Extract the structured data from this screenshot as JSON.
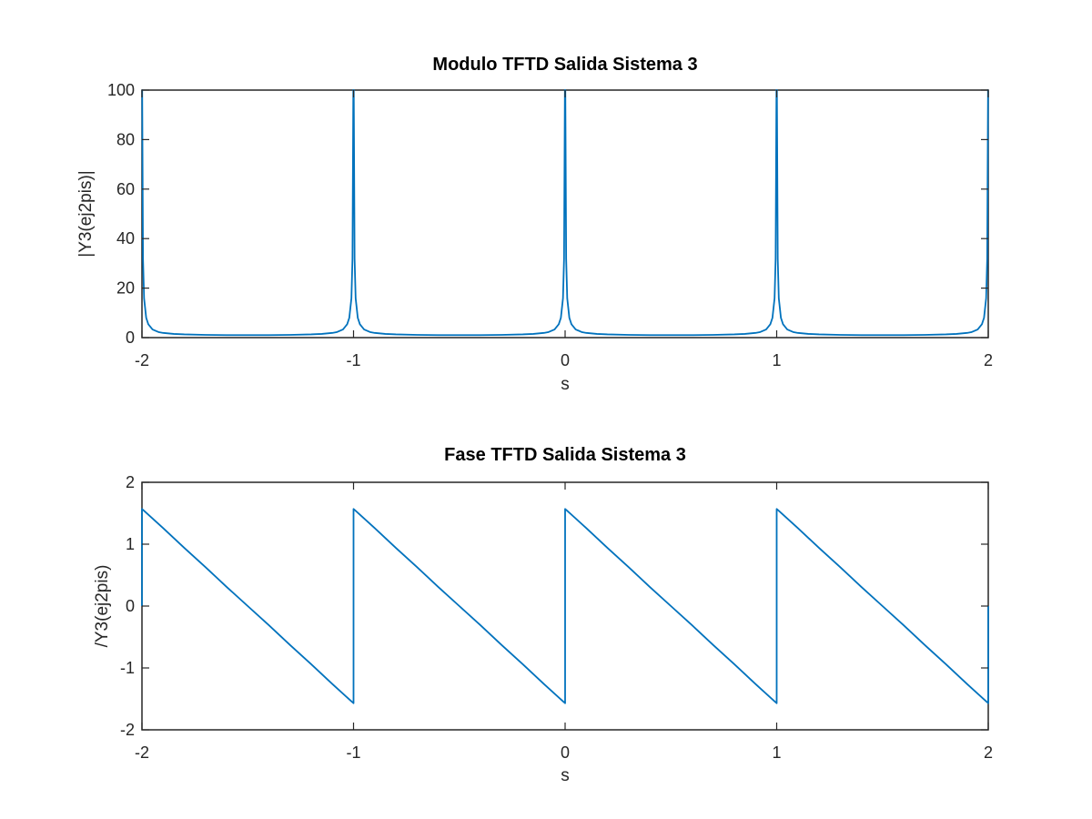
{
  "colors": {
    "series": "#0072bd",
    "axes": "#262626",
    "background": "#ffffff"
  },
  "chart_data": [
    {
      "type": "line",
      "title": "Modulo TFTD Salida Sistema 3",
      "xlabel": "s",
      "ylabel": "|Y3(ej2pis)|",
      "xlim": [
        -2,
        2
      ],
      "ylim": [
        0,
        100
      ],
      "xticks": [
        -2,
        -1,
        0,
        1,
        2
      ],
      "yticks": [
        0,
        20,
        40,
        60,
        80,
        100
      ],
      "xtick_labels": [
        "-2",
        "-1",
        "0",
        "1",
        "2"
      ],
      "ytick_labels": [
        "0",
        "20",
        "40",
        "60",
        "80",
        "100"
      ],
      "grid": false,
      "series": [
        {
          "x": [
            -2,
            -1.999,
            -1.995,
            -1.99,
            -1.98,
            -1.97,
            -1.95,
            -1.92,
            -1.9,
            -1.85,
            -1.8,
            -1.7,
            -1.6,
            -1.5,
            -1.4,
            -1.3,
            -1.2,
            -1.15,
            -1.1,
            -1.08,
            -1.05,
            -1.03,
            -1.02,
            -1.01,
            -1.005,
            -1.001,
            -1,
            -0.999,
            -0.995,
            -0.99,
            -0.98,
            -0.97,
            -0.95,
            -0.92,
            -0.9,
            -0.85,
            -0.8,
            -0.7,
            -0.6,
            -0.5,
            -0.4,
            -0.3,
            -0.2,
            -0.15,
            -0.1,
            -0.08,
            -0.05,
            -0.03,
            -0.02,
            -0.01,
            -0.005,
            -0.001,
            0,
            0.001,
            0.005,
            0.01,
            0.02,
            0.03,
            0.05,
            0.08,
            0.1,
            0.15,
            0.2,
            0.3,
            0.4,
            0.5,
            0.6,
            0.7,
            0.8,
            0.85,
            0.9,
            0.92,
            0.95,
            0.97,
            0.98,
            0.99,
            0.995,
            0.999,
            1,
            1.001,
            1.005,
            1.01,
            1.02,
            1.03,
            1.05,
            1.08,
            1.1,
            1.15,
            1.2,
            1.3,
            1.4,
            1.5,
            1.6,
            1.7,
            1.8,
            1.85,
            1.9,
            1.92,
            1.95,
            1.97,
            1.98,
            1.99,
            1.995,
            1.999,
            2
          ],
          "y": [
            100,
            100,
            31.8,
            15.9,
            8.0,
            5.4,
            3.3,
            2.2,
            1.9,
            1.5,
            1.3,
            1.1,
            1.0,
            1.0,
            1.0,
            1.1,
            1.3,
            1.5,
            1.9,
            2.2,
            3.3,
            5.4,
            8.0,
            15.9,
            31.8,
            100,
            100,
            100,
            31.8,
            15.9,
            8.0,
            5.4,
            3.3,
            2.2,
            1.9,
            1.5,
            1.3,
            1.1,
            1.0,
            1.0,
            1.0,
            1.1,
            1.3,
            1.5,
            1.9,
            2.2,
            3.3,
            5.4,
            8.0,
            15.9,
            31.8,
            100,
            100,
            100,
            31.8,
            15.9,
            8.0,
            5.4,
            3.3,
            2.2,
            1.9,
            1.5,
            1.3,
            1.1,
            1.0,
            1.0,
            1.0,
            1.1,
            1.3,
            1.5,
            1.9,
            2.2,
            3.3,
            5.4,
            8.0,
            15.9,
            31.8,
            100,
            100,
            100,
            31.8,
            15.9,
            8.0,
            5.4,
            3.3,
            2.2,
            1.9,
            1.5,
            1.3,
            1.1,
            1.0,
            1.0,
            1.0,
            1.1,
            1.3,
            1.5,
            1.9,
            2.2,
            3.3,
            5.4,
            8.0,
            15.9,
            31.8,
            100,
            100
          ]
        }
      ]
    },
    {
      "type": "line",
      "title": "Fase TFTD Salida Sistema 3",
      "xlabel": "s",
      "ylabel": "/Y3(ej2pis)",
      "xlim": [
        -2,
        2
      ],
      "ylim": [
        -2,
        2
      ],
      "xticks": [
        -2,
        -1,
        0,
        1,
        2
      ],
      "yticks": [
        -2,
        -1,
        0,
        1,
        2
      ],
      "xtick_labels": [
        "-2",
        "-1",
        "0",
        "1",
        "2"
      ],
      "ytick_labels": [
        "-2",
        "-1",
        "0",
        "1",
        "2"
      ],
      "grid": false,
      "series": [
        {
          "x": [
            -2,
            -2,
            -1.99,
            -1.9,
            -1.8,
            -1.7,
            -1.6,
            -1.5,
            -1.4,
            -1.3,
            -1.2,
            -1.1,
            -1.01,
            -1,
            -1,
            -0.99,
            -0.9,
            -0.8,
            -0.7,
            -0.6,
            -0.5,
            -0.4,
            -0.3,
            -0.2,
            -0.1,
            -0.01,
            0,
            0,
            0.01,
            0.1,
            0.2,
            0.3,
            0.4,
            0.5,
            0.6,
            0.7,
            0.8,
            0.9,
            0.99,
            1,
            1,
            1.01,
            1.1,
            1.2,
            1.3,
            1.4,
            1.5,
            1.6,
            1.7,
            1.8,
            1.9,
            1.99,
            2,
            2
          ],
          "y": [
            0,
            1.57,
            1.54,
            1.26,
            0.94,
            0.63,
            0.31,
            0,
            -0.31,
            -0.63,
            -0.94,
            -1.26,
            -1.54,
            -1.57,
            1.57,
            1.54,
            1.26,
            0.94,
            0.63,
            0.31,
            0,
            -0.31,
            -0.63,
            -0.94,
            -1.26,
            -1.54,
            -1.57,
            1.57,
            1.54,
            1.26,
            0.94,
            0.63,
            0.31,
            0,
            -0.31,
            -0.63,
            -0.94,
            -1.26,
            -1.54,
            -1.57,
            1.57,
            1.54,
            1.26,
            0.94,
            0.63,
            0.31,
            0,
            -0.31,
            -0.63,
            -0.94,
            -1.26,
            -1.54,
            -1.57,
            0
          ]
        }
      ]
    }
  ]
}
